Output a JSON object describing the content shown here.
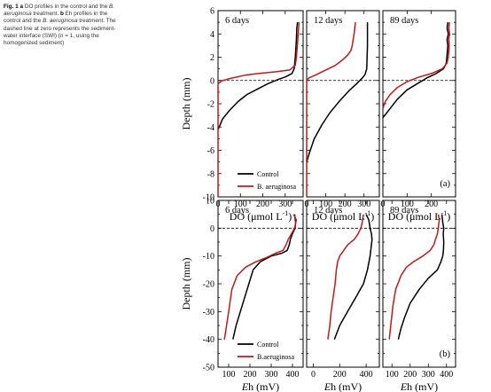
{
  "caption": {
    "fig_label": "Fig. 1",
    "a": "a",
    "a_text": " DO profiles in the control and the ",
    "species": "B. aeruginosa",
    "a_end": " treatment. ",
    "b": "b",
    "b_text": " Eh profiles in the control and the ",
    "b_end": " treatment. The dashed line at zero represents the sediment-water interface (SWI) (",
    "n": "n",
    "n_text": " = 1, using the homogenized sediment)"
  },
  "colors": {
    "control": "#000000",
    "treatment": "#c0191b"
  },
  "chart_data": [
    {
      "type": "line",
      "panel_label": "(a)",
      "ylabel": "Depth (mm)",
      "ylim": [
        -10,
        6
      ],
      "yticks": [
        -10,
        -8,
        -6,
        -4,
        -2,
        0,
        2,
        4,
        6
      ],
      "swi": 0,
      "legend": {
        "position": "bottom-left",
        "panel": 0,
        "entries": [
          "Control",
          "B. aeruginosa"
        ]
      },
      "panels": [
        {
          "title": "6 days",
          "xlabel": "DO (μmol L",
          "xlabel_sup": "-1",
          "xlabel_end": ")",
          "xlim": [
            0,
            380
          ],
          "xticks": [
            0,
            100,
            200,
            300
          ],
          "series": [
            {
              "name": "Control",
              "points": [
                [
                  355,
                  5
                ],
                [
                  352,
                  4.5
                ],
                [
                  350,
                  3.5
                ],
                [
                  345,
                  2
                ],
                [
                  340,
                  1
                ],
                [
                  330,
                  0.6
                ],
                [
                  300,
                  0.3
                ],
                [
                  270,
                  0.1
                ],
                [
                  220,
                  -0.3
                ],
                [
                  180,
                  -0.7
                ],
                [
                  130,
                  -1.2
                ],
                [
                  90,
                  -1.8
                ],
                [
                  50,
                  -2.6
                ],
                [
                  20,
                  -3.3
                ],
                [
                  5,
                  -4
                ],
                [
                  0,
                  -4.2
                ]
              ]
            },
            {
              "name": "B. aeruginosa",
              "points": [
                [
                  362,
                  5
                ],
                [
                  360,
                  4.5
                ],
                [
                  355,
                  3.2
                ],
                [
                  350,
                  2
                ],
                [
                  345,
                  1.3
                ],
                [
                  320,
                  0.9
                ],
                [
                  260,
                  0.75
                ],
                [
                  180,
                  0.6
                ],
                [
                  120,
                  0.45
                ],
                [
                  60,
                  0.2
                ],
                [
                  20,
                  0
                ],
                [
                  5,
                  -0.2
                ],
                [
                  0,
                  -0.3
                ],
                [
                  0,
                  -10
                ]
              ]
            }
          ]
        },
        {
          "title": "12 days",
          "xlabel": "DO (μmol L",
          "xlabel_sup": "-1",
          "xlabel_end": ")",
          "xlim": [
            0,
            380
          ],
          "xticks": [
            0,
            100,
            200,
            300
          ],
          "series": [
            {
              "name": "Control",
              "points": [
                [
                  318,
                  5
                ],
                [
                  318,
                  4
                ],
                [
                  318,
                  3
                ],
                [
                  316,
                  2
                ],
                [
                  314,
                  1
                ],
                [
                  305,
                  0.5
                ],
                [
                  290,
                  0.2
                ],
                [
                  260,
                  -0.3
                ],
                [
                  220,
                  -0.9
                ],
                [
                  170,
                  -1.8
                ],
                [
                  120,
                  -2.8
                ],
                [
                  80,
                  -3.8
                ],
                [
                  40,
                  -5
                ],
                [
                  15,
                  -6.2
                ],
                [
                  0,
                  -7
                ]
              ]
            },
            {
              "name": "B. aeruginosa",
              "points": [
                [
                  255,
                  5
                ],
                [
                  248,
                  4
                ],
                [
                  238,
                  3
                ],
                [
                  232,
                  2.6
                ],
                [
                  228,
                  2.5
                ],
                [
                  215,
                  2.2
                ],
                [
                  190,
                  1.8
                ],
                [
                  150,
                  1.3
                ],
                [
                  100,
                  0.9
                ],
                [
                  50,
                  0.5
                ],
                [
                  10,
                  0.2
                ],
                [
                  0,
                  0
                ],
                [
                  0,
                  -10
                ]
              ]
            }
          ]
        },
        {
          "title": "89 days",
          "xlabel": "DO (μmol L",
          "xlabel_sup": "-1",
          "xlabel_end": ")",
          "xlim": [
            0,
            300
          ],
          "xticks": [
            0,
            100,
            200
          ],
          "series": [
            {
              "name": "Control",
              "points": [
                [
                  268,
                  5
                ],
                [
                  265,
                  4.5
                ],
                [
                  270,
                  4
                ],
                [
                  265,
                  3.5
                ],
                [
                  268,
                  3
                ],
                [
                  264,
                  2
                ],
                [
                  262,
                  1.5
                ],
                [
                  250,
                  1
                ],
                [
                  220,
                  0.6
                ],
                [
                  180,
                  0.2
                ],
                [
                  140,
                  -0.3
                ],
                [
                  100,
                  -0.8
                ],
                [
                  60,
                  -1.6
                ],
                [
                  30,
                  -2.4
                ],
                [
                  0,
                  -3.2
                ]
              ]
            },
            {
              "name": "B. aeruginosa",
              "points": [
                [
                  275,
                  5
                ],
                [
                  272,
                  4.5
                ],
                [
                  276,
                  4
                ],
                [
                  272,
                  3.5
                ],
                [
                  274,
                  3
                ],
                [
                  270,
                  2
                ],
                [
                  265,
                  1.5
                ],
                [
                  245,
                  1
                ],
                [
                  200,
                  0.6
                ],
                [
                  150,
                  0.3
                ],
                [
                  100,
                  -0.1
                ],
                [
                  60,
                  -0.6
                ],
                [
                  30,
                  -1.2
                ],
                [
                  10,
                  -1.8
                ],
                [
                  0,
                  -2.4
                ]
              ]
            }
          ]
        }
      ]
    },
    {
      "type": "line",
      "panel_label": "(b)",
      "ylabel": "Depth (mm)",
      "ylim": [
        -50,
        10
      ],
      "yticks": [
        -50,
        -40,
        -30,
        -20,
        -10,
        0,
        10
      ],
      "swi": 0,
      "legend": {
        "position": "bottom-left",
        "panel": 0,
        "entries": [
          "Control",
          "B.aeruginosa"
        ]
      },
      "panels": [
        {
          "title": "6 days",
          "xlabel": "h (mV)",
          "xlabel_italic": "E",
          "xlim": [
            50,
            450
          ],
          "xticks": [
            100,
            200,
            300,
            400
          ],
          "series": [
            {
              "name": "Control",
              "points": [
                [
                  410,
                  5
                ],
                [
                  415,
                  2
                ],
                [
                  412,
                  0
                ],
                [
                  400,
                  -2
                ],
                [
                  390,
                  -4
                ],
                [
                  385,
                  -6
                ],
                [
                  375,
                  -8
                ],
                [
                  350,
                  -9
                ],
                [
                  300,
                  -10
                ],
                [
                  250,
                  -12
                ],
                [
                  215,
                  -15
                ],
                [
                  195,
                  -20
                ],
                [
                  175,
                  -25
                ],
                [
                  155,
                  -30
                ],
                [
                  135,
                  -35
                ],
                [
                  120,
                  -40
                ]
              ]
            },
            {
              "name": "B.aeruginosa",
              "points": [
                [
                  405,
                  5
                ],
                [
                  418,
                  3
                ],
                [
                  410,
                  0
                ],
                [
                  395,
                  -2
                ],
                [
                  380,
                  -4
                ],
                [
                  370,
                  -6
                ],
                [
                  355,
                  -8
                ],
                [
                  320,
                  -9
                ],
                [
                  280,
                  -10.5
                ],
                [
                  230,
                  -12
                ],
                [
                  180,
                  -14
                ],
                [
                  140,
                  -17
                ],
                [
                  115,
                  -22
                ],
                [
                  100,
                  -30
                ],
                [
                  90,
                  -35
                ],
                [
                  80,
                  -40
                ]
              ]
            }
          ]
        },
        {
          "title": "12 days",
          "xlabel": "h (mV)",
          "xlabel_italic": "E",
          "xlim": [
            -50,
            500
          ],
          "xticks": [
            0,
            200,
            400
          ],
          "series": [
            {
              "name": "Control",
              "points": [
                [
                  400,
                  5
                ],
                [
                  420,
                  3
                ],
                [
                  430,
                  0
                ],
                [
                  440,
                  -2
                ],
                [
                  445,
                  -4
                ],
                [
                  440,
                  -6
                ],
                [
                  430,
                  -10
                ],
                [
                  410,
                  -15
                ],
                [
                  380,
                  -20
                ],
                [
                  320,
                  -25
                ],
                [
                  260,
                  -30
                ],
                [
                  200,
                  -35
                ],
                [
                  160,
                  -40
                ]
              ]
            },
            {
              "name": "B.aeruginosa",
              "points": [
                [
                  380,
                  5
                ],
                [
                  370,
                  2
                ],
                [
                  360,
                  0
                ],
                [
                  340,
                  -2
                ],
                [
                  310,
                  -4
                ],
                [
                  260,
                  -6
                ],
                [
                  230,
                  -8
                ],
                [
                  200,
                  -10
                ],
                [
                  185,
                  -12
                ],
                [
                  175,
                  -15
                ],
                [
                  165,
                  -20
                ],
                [
                  150,
                  -25
                ],
                [
                  135,
                  -30
                ],
                [
                  125,
                  -35
                ],
                [
                  110,
                  -40
                ]
              ]
            }
          ]
        },
        {
          "title": "89 days",
          "xlabel": "h (mV)",
          "xlabel_italic": "E",
          "xlim": [
            50,
            450
          ],
          "xticks": [
            100,
            200,
            300,
            400
          ],
          "series": [
            {
              "name": "Control",
              "points": [
                [
                  375,
                  5
                ],
                [
                  380,
                  2
                ],
                [
                  385,
                  0
                ],
                [
                  382,
                  -2
                ],
                [
                  385,
                  -5
                ],
                [
                  383,
                  -8
                ],
                [
                  380,
                  -10
                ],
                [
                  370,
                  -12
                ],
                [
                  350,
                  -15
                ],
                [
                  300,
                  -18
                ],
                [
                  250,
                  -22
                ],
                [
                  200,
                  -27
                ],
                [
                  170,
                  -32
                ],
                [
                  150,
                  -36
                ],
                [
                  135,
                  -40
                ]
              ]
            },
            {
              "name": "B.aeruginosa",
              "points": [
                [
                  355,
                  5
                ],
                [
                  360,
                  3
                ],
                [
                  355,
                  0
                ],
                [
                  350,
                  -2
                ],
                [
                  340,
                  -4
                ],
                [
                  330,
                  -6
                ],
                [
                  310,
                  -8
                ],
                [
                  270,
                  -10
                ],
                [
                  220,
                  -12
                ],
                [
                  180,
                  -14
                ],
                [
                  150,
                  -17
                ],
                [
                  120,
                  -22
                ],
                [
                  105,
                  -28
                ],
                [
                  95,
                  -34
                ],
                [
                  85,
                  -40
                ]
              ]
            }
          ]
        }
      ]
    }
  ]
}
